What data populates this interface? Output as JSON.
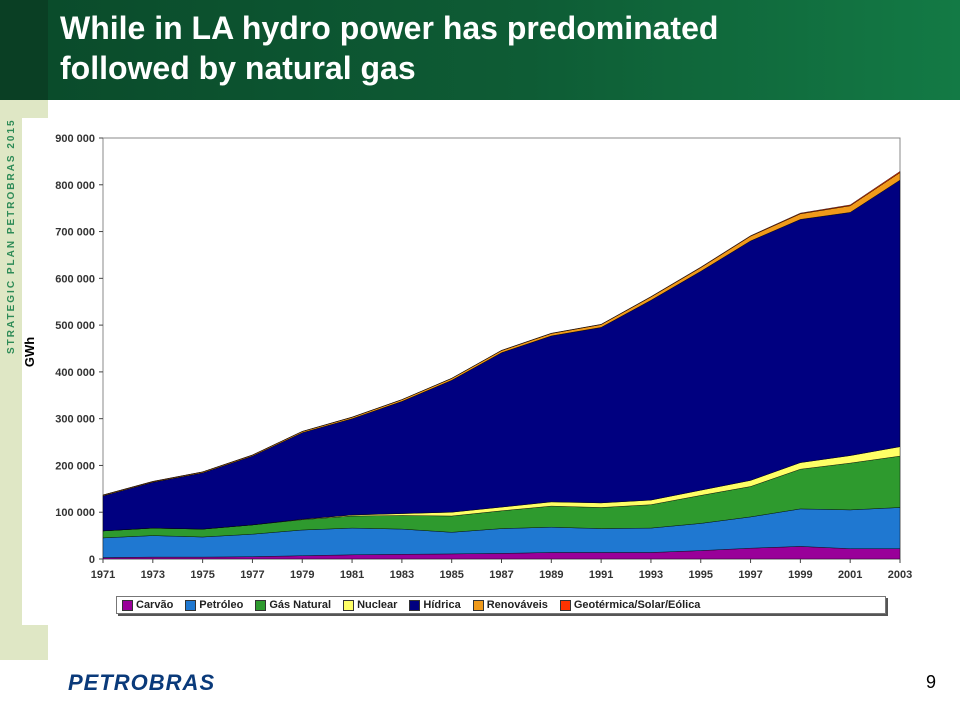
{
  "slide": {
    "title": "While in LA hydro power has predominated\nfollowed by natural gas",
    "side_text": "STRATEGIC PLAN PETROBRAS 2015",
    "logo_text": "PETROBRAS",
    "page_number": "9"
  },
  "colors": {
    "header": "#0e5c35",
    "Carvão": "#990099",
    "Petróleo": "#1f78d1",
    "Gás Natural": "#2e9a2e",
    "Nuclear": "#ffff66",
    "Hídrica": "#000080",
    "Renováveis": "#f09a1a",
    "Geotérmica/Solar/Eólica": "#ff3300"
  },
  "chart_data": {
    "type": "area",
    "stacked": true,
    "ylabel": "GWh",
    "xlabel": "",
    "ylim": [
      0,
      900000
    ],
    "yticks": [
      "0",
      "100 000",
      "200 000",
      "300 000",
      "400 000",
      "500 000",
      "600 000",
      "700 000",
      "800 000",
      "900 000"
    ],
    "xticks": [
      "1971",
      "1973",
      "1975",
      "1977",
      "1979",
      "1981",
      "1983",
      "1985",
      "1987",
      "1989",
      "1991",
      "1993",
      "1995",
      "1997",
      "1999",
      "2001",
      "2003"
    ],
    "grid": false,
    "legend_position": "bottom",
    "x": [
      1971,
      1973,
      1975,
      1977,
      1979,
      1981,
      1983,
      1985,
      1987,
      1989,
      1991,
      1993,
      1995,
      1997,
      1999,
      2001,
      2003
    ],
    "series": [
      {
        "name": "Carvão",
        "values": [
          3000,
          4000,
          4000,
          5000,
          7000,
          9000,
          10000,
          11000,
          12000,
          14000,
          14000,
          14000,
          18000,
          23000,
          27000,
          22000,
          22000
        ]
      },
      {
        "name": "Petróleo",
        "values": [
          42000,
          46000,
          43000,
          48000,
          55000,
          57000,
          54000,
          46000,
          53000,
          54000,
          51000,
          52000,
          58000,
          67000,
          80000,
          83000,
          88000
        ]
      },
      {
        "name": "Gás Natural",
        "values": [
          15000,
          16000,
          17000,
          20000,
          22000,
          26000,
          29000,
          35000,
          38000,
          45000,
          45000,
          50000,
          60000,
          65000,
          85000,
          100000,
          110000
        ]
      },
      {
        "name": "Nuclear",
        "values": [
          0,
          0,
          0,
          0,
          1000,
          2000,
          4000,
          8000,
          8000,
          9000,
          10000,
          10000,
          11000,
          13000,
          14000,
          16000,
          20000
        ]
      },
      {
        "name": "Hídrica",
        "values": [
          75000,
          98000,
          120000,
          147000,
          185000,
          206000,
          240000,
          282000,
          330000,
          355000,
          375000,
          427000,
          468000,
          512000,
          520000,
          520000,
          570000
        ]
      },
      {
        "name": "Renováveis",
        "values": [
          1500,
          1500,
          2000,
          2000,
          2500,
          3000,
          3500,
          4000,
          4500,
          5000,
          6000,
          7000,
          8000,
          10000,
          12000,
          14000,
          16000
        ]
      },
      {
        "name": "Geotérmica/Solar/Eólica",
        "values": [
          500,
          500,
          500,
          500,
          500,
          500,
          500,
          500,
          600,
          700,
          800,
          900,
          1000,
          1200,
          1500,
          2000,
          2500
        ]
      }
    ]
  }
}
